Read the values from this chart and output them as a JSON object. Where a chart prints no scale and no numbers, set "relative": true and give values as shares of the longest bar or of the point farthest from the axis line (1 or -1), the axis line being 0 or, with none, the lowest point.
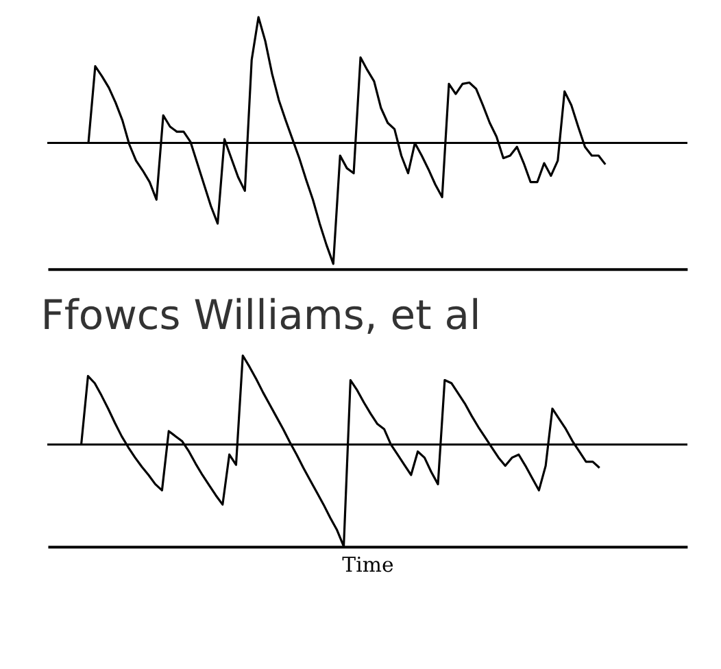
{
  "chart_data": [
    {
      "type": "line",
      "relative": true,
      "color": "#000000",
      "categories": [
        null,
        null,
        null,
        null,
        null,
        null,
        null,
        null,
        null,
        null,
        null,
        null,
        null,
        null,
        null,
        null,
        null,
        null,
        null,
        null,
        null,
        null,
        null,
        null,
        null,
        null,
        null,
        null,
        null,
        null,
        null,
        null,
        null,
        null,
        null,
        null,
        null,
        null,
        null,
        null,
        null,
        null,
        null,
        null,
        null,
        null,
        null,
        null,
        null,
        null,
        null,
        null,
        null,
        null,
        null,
        null,
        null,
        null,
        null,
        null,
        null,
        null,
        null,
        null,
        null,
        null,
        null,
        null,
        null,
        null,
        null,
        null,
        null,
        null,
        null,
        null,
        null,
        null,
        null,
        null,
        null,
        null,
        null,
        null,
        null,
        null,
        null,
        null,
        null,
        null,
        null,
        null,
        null,
        null,
        null
      ],
      "values": [
        null,
        null,
        null,
        null,
        null,
        null,
        0.0,
        0.61,
        0.53,
        0.44,
        0.32,
        0.18,
        -0.01,
        -0.14,
        -0.22,
        -0.31,
        -0.45,
        0.22,
        0.13,
        0.09,
        0.09,
        0.01,
        -0.16,
        -0.33,
        -0.5,
        -0.64,
        0.03,
        -0.12,
        -0.27,
        -0.38,
        0.66,
        1.0,
        0.81,
        0.55,
        0.34,
        0.18,
        0.03,
        -0.12,
        -0.29,
        -0.45,
        -0.64,
        -0.81,
        -0.96,
        -0.1,
        -0.2,
        -0.24,
        0.68,
        0.58,
        0.49,
        0.28,
        0.16,
        0.11,
        -0.1,
        -0.24,
        0.0,
        -0.1,
        -0.21,
        -0.33,
        -0.43,
        0.47,
        0.39,
        0.47,
        0.48,
        0.43,
        0.3,
        0.16,
        0.05,
        -0.12,
        -0.1,
        -0.03,
        -0.16,
        -0.31,
        -0.31,
        -0.16,
        -0.26,
        -0.14,
        0.41,
        0.3,
        0.13,
        -0.03,
        -0.1,
        -0.1,
        -0.17,
        null,
        null,
        null,
        null,
        null,
        null,
        null,
        null,
        null,
        null,
        null,
        null
      ],
      "ref_lines": [
        {
          "axis": "y",
          "value": 0
        }
      ]
    },
    {
      "type": "line",
      "relative": true,
      "color": "#000000",
      "title": "Ffowcs Williams, et al",
      "xlabel": "Time",
      "categories": [
        null,
        null,
        null,
        null,
        null,
        null,
        null,
        null,
        null,
        null,
        null,
        null,
        null,
        null,
        null,
        null,
        null,
        null,
        null,
        null,
        null,
        null,
        null,
        null,
        null,
        null,
        null,
        null,
        null,
        null,
        null,
        null,
        null,
        null,
        null,
        null,
        null,
        null,
        null,
        null,
        null,
        null,
        null,
        null,
        null,
        null,
        null,
        null,
        null,
        null,
        null,
        null,
        null,
        null,
        null,
        null,
        null,
        null,
        null,
        null,
        null,
        null,
        null,
        null,
        null,
        null,
        null,
        null,
        null,
        null,
        null,
        null,
        null,
        null,
        null,
        null,
        null,
        null,
        null,
        null,
        null,
        null,
        null,
        null,
        null,
        null,
        null,
        null,
        null,
        null,
        null,
        null,
        null,
        null,
        null,
        null
      ],
      "values": [
        null,
        null,
        null,
        null,
        null,
        0.0,
        0.67,
        0.6,
        0.48,
        0.35,
        0.21,
        0.08,
        -0.03,
        -0.13,
        -0.22,
        -0.3,
        -0.39,
        -0.45,
        0.13,
        0.08,
        0.03,
        -0.07,
        -0.19,
        -0.3,
        -0.4,
        -0.5,
        -0.59,
        -0.1,
        -0.2,
        0.87,
        0.76,
        0.64,
        0.51,
        0.39,
        0.27,
        0.15,
        0.02,
        -0.1,
        -0.23,
        -0.35,
        -0.47,
        -0.59,
        -0.72,
        -0.84,
        -1.0,
        0.63,
        0.53,
        0.41,
        0.3,
        0.2,
        0.15,
        0.0,
        -0.1,
        -0.2,
        -0.3,
        -0.07,
        -0.13,
        -0.27,
        -0.39,
        0.63,
        0.6,
        0.5,
        0.4,
        0.28,
        0.17,
        0.07,
        -0.03,
        -0.13,
        -0.21,
        -0.13,
        -0.1,
        -0.21,
        -0.33,
        -0.45,
        -0.21,
        0.35,
        0.25,
        0.15,
        0.03,
        -0.07,
        -0.17,
        -0.17,
        -0.23,
        null,
        null,
        null,
        null,
        null,
        null,
        null,
        null,
        null,
        null,
        null,
        null,
        null
      ],
      "ref_lines": [
        {
          "axis": "y",
          "value": 0
        }
      ]
    }
  ]
}
